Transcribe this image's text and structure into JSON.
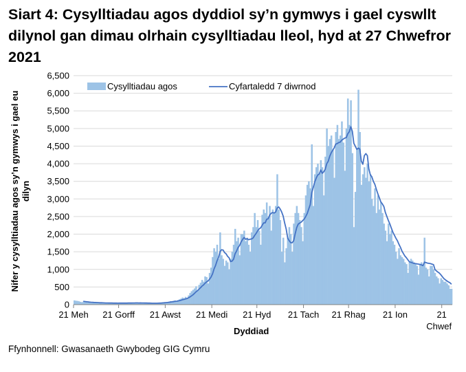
{
  "title": "Siart 4: Cysylltiadau agos dyddiol sy’n gymwys i gael cyswllt dilynol gan dimau olrhain cysylltiadau lleol, hyd at 27 Chwefror 2021",
  "source": "Ffynhonnell: Gwasanaeth Gwybodeg GIG Cymru",
  "chart_data": {
    "type": "bar",
    "title": "Siart 4: Cysylltiadau agos dyddiol sy’n gymwys i gael cyswllt dilynol gan dimau olrhain cysylltiadau lleol, hyd at 27 Chwefror 2021",
    "xlabel": "Dyddiad",
    "ylabel": "Nifer y cysylltiadau agos sy’n gymwys i gael eu dilyn",
    "x_start": "2020-06-21",
    "x_end": "2021-02-27",
    "ylim": [
      0,
      6500
    ],
    "yticks": [
      "0",
      "500",
      "1,000",
      "1,500",
      "2,000",
      "2,500",
      "3,000",
      "3,500",
      "4,000",
      "4,500",
      "5,000",
      "5,500",
      "6,000",
      "6,500"
    ],
    "xticks": [
      {
        "date": "2020-06-21",
        "label": "21 Meh"
      },
      {
        "date": "2020-07-21",
        "label": "21 Gorff"
      },
      {
        "date": "2020-08-21",
        "label": "21 Awst"
      },
      {
        "date": "2020-09-21",
        "label": "21 Medi"
      },
      {
        "date": "2020-10-21",
        "label": "21 Hyd"
      },
      {
        "date": "2020-11-21",
        "label": "21 Tach"
      },
      {
        "date": "2020-12-21",
        "label": "21 Rhag"
      },
      {
        "date": "2021-01-21",
        "label": "21 Ion"
      },
      {
        "date": "2021-02-21",
        "label": "21 Chwef"
      }
    ],
    "grid": true,
    "legend_position": "top-left",
    "series": [
      {
        "name": "Cysylltiadau agos",
        "type": "bar",
        "color": "#9DC3E6",
        "values": [
          120,
          110,
          105,
          95,
          80,
          70,
          85,
          75,
          70,
          65,
          60,
          55,
          50,
          60,
          60,
          55,
          50,
          45,
          50,
          40,
          45,
          45,
          50,
          45,
          40,
          45,
          35,
          40,
          45,
          40,
          50,
          45,
          40,
          35,
          45,
          50,
          55,
          45,
          50,
          45,
          40,
          50,
          55,
          45,
          50,
          45,
          40,
          35,
          45,
          40,
          45,
          40,
          35,
          40,
          30,
          45,
          50,
          55,
          60,
          65,
          70,
          55,
          75,
          85,
          100,
          95,
          110,
          120,
          90,
          130,
          150,
          170,
          200,
          180,
          220,
          170,
          260,
          330,
          380,
          420,
          460,
          520,
          400,
          560,
          620,
          700,
          650,
          800,
          780,
          600,
          900,
          1050,
          1350,
          1600,
          1500,
          1700,
          1300,
          2050,
          1400,
          1300,
          1100,
          1250,
          1200,
          1000,
          1300,
          1500,
          1700,
          2150,
          1800,
          1900,
          1400,
          2000,
          2000,
          2100,
          1800,
          1900,
          1700,
          1500,
          2050,
          2200,
          2600,
          2200,
          2400,
          2100,
          1700,
          2550,
          2700,
          2600,
          2900,
          2500,
          2800,
          2100,
          2700,
          2600,
          2800,
          3700,
          2700,
          2400,
          1500,
          1900,
          1200,
          1600,
          1900,
          2200,
          2000,
          1500,
          2300,
          2600,
          2800,
          2600,
          2400,
          2200,
          1800,
          2600,
          3100,
          3400,
          3500,
          3300,
          4550,
          2800,
          3700,
          3900,
          4000,
          3700,
          4100,
          3900,
          3100,
          4200,
          5000,
          4500,
          4700,
          4800,
          4400,
          3600,
          4900,
          5100,
          4700,
          4800,
          5200,
          4600,
          3800,
          5000,
          5850,
          5100,
          5800,
          4300,
          2200,
          3200,
          4400,
          6100,
          4900,
          3400,
          3700,
          3900,
          3600,
          4000,
          3500,
          3700,
          3000,
          2800,
          3300,
          2600,
          3100,
          2700,
          2900,
          2600,
          2300,
          2100,
          1800,
          2300,
          2000,
          2100,
          1800,
          1700,
          1500,
          1300,
          1600,
          1400,
          1350,
          1300,
          1200,
          1150,
          900,
          1200,
          1300,
          1250,
          1200,
          1150,
          1100,
          850,
          1150,
          1200,
          1100,
          1900,
          1050,
          1000,
          800,
          1100,
          1100,
          1000,
          900,
          800,
          750,
          600,
          750,
          700,
          650,
          650,
          600,
          550,
          450,
          450
        ]
      },
      {
        "name": "Cyfartaledd 7 diwrnod",
        "type": "line",
        "color": "#4472C4",
        "derived": "7-day rolling average of Cysylltiadau agos"
      }
    ]
  }
}
